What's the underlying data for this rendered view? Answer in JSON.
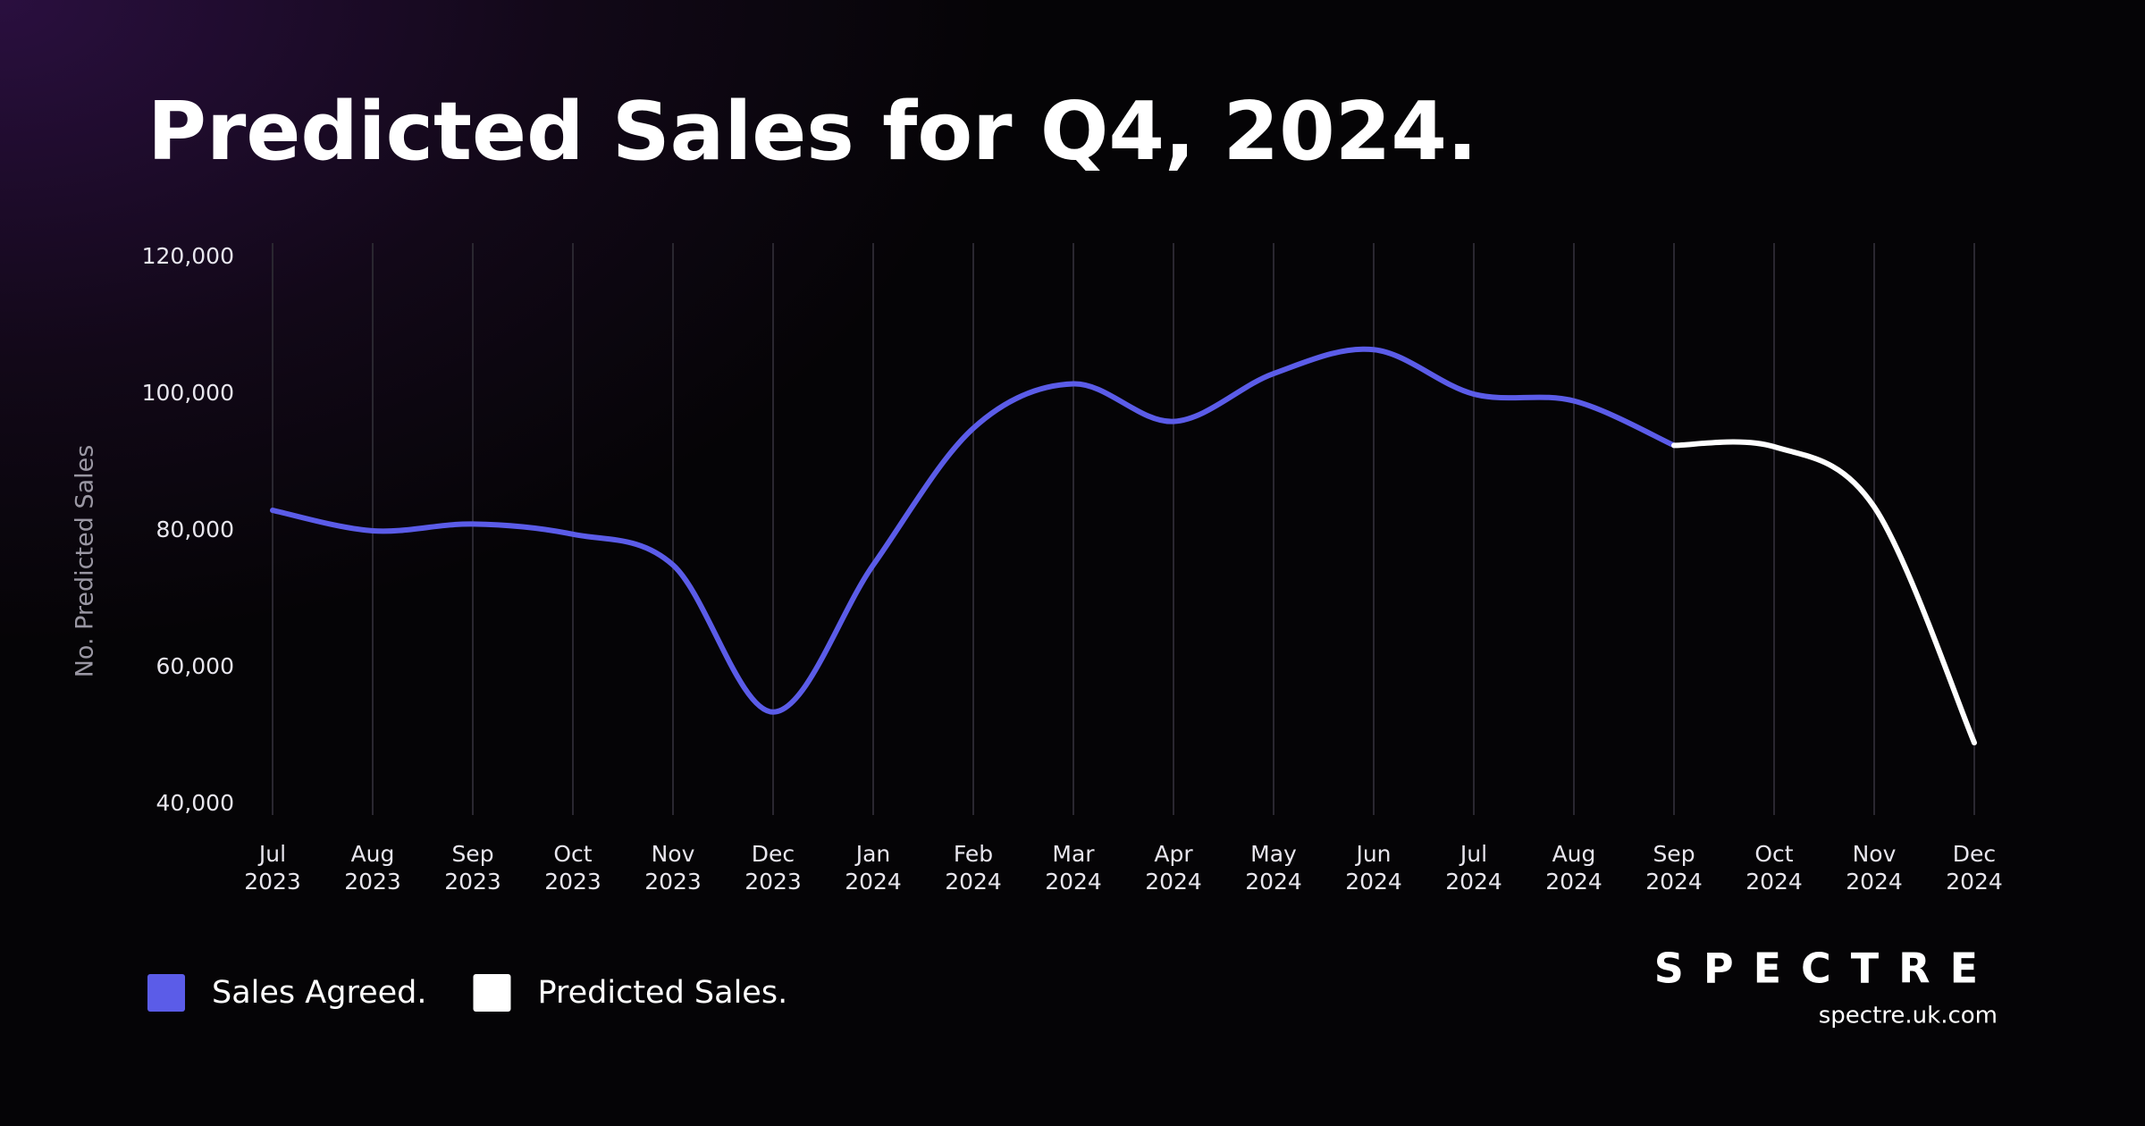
{
  "chart_data": {
    "type": "line",
    "title": "Predicted Sales for Q4, 2024.",
    "ylabel": "No. Predicted Sales",
    "categories": [
      "Jul 2023",
      "Aug 2023",
      "Sep 2023",
      "Oct 2023",
      "Nov 2023",
      "Dec 2023",
      "Jan 2024",
      "Feb 2024",
      "Mar 2024",
      "Apr 2024",
      "May 2024",
      "Jun 2024",
      "Jul 2024",
      "Aug 2024",
      "Sep 2024",
      "Oct 2024",
      "Nov 2024",
      "Dec 2024"
    ],
    "series": [
      {
        "name": "Sales Agreed.",
        "color": "#5b5ce8",
        "values": [
          83000,
          80000,
          81000,
          79500,
          75000,
          53500,
          75000,
          95000,
          101500,
          96000,
          103000,
          106500,
          100000,
          99000,
          92500,
          null,
          null,
          null
        ]
      },
      {
        "name": "Predicted Sales.",
        "color": "#ffffff",
        "values": [
          null,
          null,
          null,
          null,
          null,
          null,
          null,
          null,
          null,
          null,
          null,
          null,
          null,
          null,
          92500,
          92300,
          83500,
          49000
        ]
      }
    ],
    "ylim": [
      40000,
      120000
    ],
    "yticks": [
      {
        "value": 40000,
        "label": "40,000"
      },
      {
        "value": 60000,
        "label": "60,000"
      },
      {
        "value": 80000,
        "label": "80,000"
      },
      {
        "value": 100000,
        "label": "100,000"
      },
      {
        "value": 120000,
        "label": "120,000"
      }
    ],
    "grid": "x",
    "legend": "bottom-left"
  },
  "brand": {
    "logo": "SPECTRE",
    "url": "spectre.uk.com"
  }
}
